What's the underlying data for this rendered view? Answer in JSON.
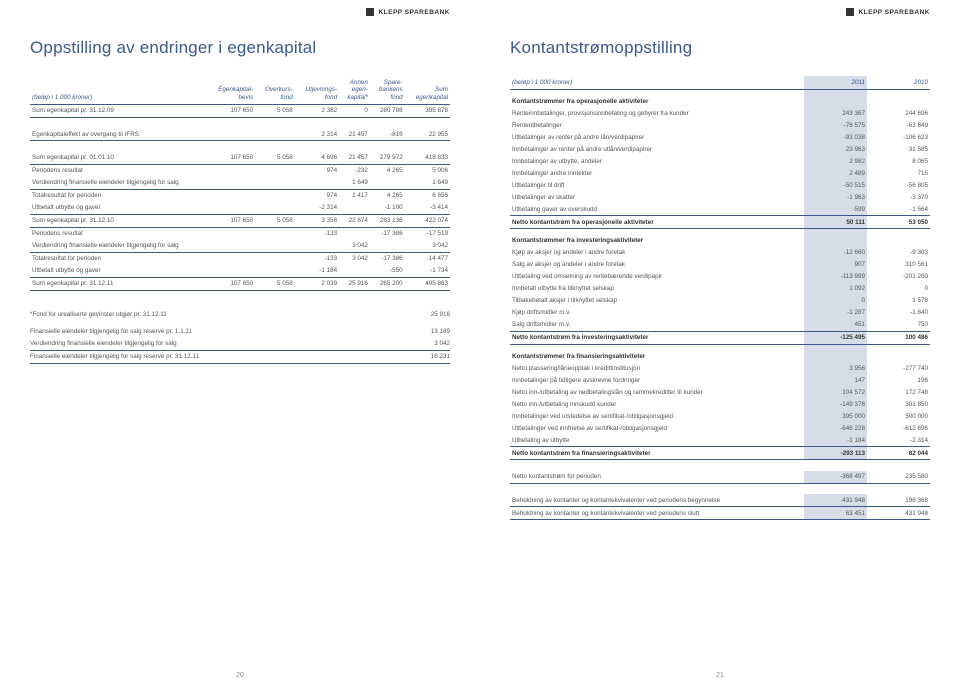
{
  "brand": "KLEPP SPAREBANK",
  "left": {
    "title": "Oppstilling av endringer i egenkapital",
    "unit": "(beløp i 1 000 kroner)",
    "headers": [
      "Egenkapital-\nbevis",
      "Overkurs-\nfond",
      "Utjevnings-\nfond",
      "Annen\negen-\nkapital*",
      "Spare-\nbankens\nfond",
      "Sum\negenkapital"
    ],
    "rows": [
      {
        "l": "Sum egenkapital pr. 31.12.09",
        "v": [
          "107 650",
          "5 058",
          "2 382",
          "0",
          "280 788",
          "395 878"
        ],
        "rule": true
      },
      {
        "l": "",
        "v": [
          "",
          "",
          "",
          "",
          "",
          ""
        ],
        "space": true
      },
      {
        "l": "Egenkapitaleffekt av overgang til IFRS",
        "v": [
          "",
          "",
          "2 314",
          "21 457",
          "-816",
          "22 955"
        ],
        "rule": true
      },
      {
        "l": "",
        "v": [
          "",
          "",
          "",
          "",
          "",
          ""
        ],
        "space": true
      },
      {
        "l": "Sum egenkapital pr. 01.01.10",
        "v": [
          "107 650",
          "5 058",
          "4 696",
          "21 457",
          "279 972",
          "418 833"
        ],
        "rule": true
      },
      {
        "l": "Periodens resultat",
        "v": [
          "",
          "",
          "974",
          "-232",
          "4 265",
          "5 006"
        ]
      },
      {
        "l": "Verdiendring finansielle eiendeler tilgjengelig for salg",
        "v": [
          "",
          "",
          "",
          "1 649",
          "",
          "1 649"
        ],
        "rule": true
      },
      {
        "l": "Totalresultat for perioden",
        "v": [
          "",
          "",
          "974",
          "1 417",
          "4 265",
          "6 656"
        ]
      },
      {
        "l": "Utbetalt utbytte og gaver",
        "v": [
          "",
          "",
          "-2 314",
          "",
          "-1 100",
          "-3 414"
        ],
        "rule": true
      },
      {
        "l": "Sum egenkapital pr. 31.12.10",
        "v": [
          "107 650",
          "5 058",
          "3 356",
          "22 874",
          "283 136",
          "422 074"
        ],
        "rule": true
      },
      {
        "l": "Periodens resultat",
        "v": [
          "",
          "",
          "-133",
          "",
          "-17 386",
          "-17 519"
        ]
      },
      {
        "l": "Verdiendring finansielle eiendeler tilgjengelig for salg",
        "v": [
          "",
          "",
          "",
          "3 042",
          "",
          "3 042"
        ],
        "rule": true
      },
      {
        "l": "Totalresultat for perioden",
        "v": [
          "",
          "",
          "-133",
          "3 042",
          "-17 386",
          "-14 477"
        ]
      },
      {
        "l": "Utbetalt utbytte og gaver",
        "v": [
          "",
          "",
          "-1 184",
          "",
          "-550",
          "-1 734"
        ],
        "rule": true
      },
      {
        "l": "Sum egenkapital pr. 31.12.11",
        "v": [
          "107 650",
          "5 058",
          "2 039",
          "25 916",
          "265 200",
          "405 863"
        ],
        "rule": true
      }
    ],
    "notes": [
      {
        "l": "*Fond for urealiserte gevinster utgjør pr. 31.12.11",
        "v": "25 916"
      },
      {
        "l": "",
        "v": ""
      },
      {
        "l": "Finansielle eiendeler tilgjengelig for salg reserve pr. 1.1.11",
        "v": "13 189"
      },
      {
        "l": "Verdiendring finansielle eiendeler tilgjengelig for salg",
        "v": "3 042",
        "rule": true
      },
      {
        "l": "Finansielle eiendeler tilgjengelig for salg reserve pr. 31.12.11",
        "v": "16 231",
        "rule": true
      }
    ],
    "pagenum": "20"
  },
  "right": {
    "title": "Kontantstrømoppstilling",
    "unit": "(beløp i 1 000 kroner)",
    "headers": [
      "2011",
      "2010"
    ],
    "sections": [
      {
        "head": "Kontantstrømmer fra operasjonelle aktiviteter",
        "rows": [
          {
            "l": "Renteinnbetalinger, provisjonsinnbetaling og gebyrer fra kunder",
            "v": [
              "243 367",
              "244 696"
            ]
          },
          {
            "l": "Renteutbetalinger",
            "v": [
              "-76 575",
              "-63 649"
            ]
          },
          {
            "l": "Utbetalinger av renter på andre lån/verdipapirer",
            "v": [
              "-93 038",
              "-106 623"
            ]
          },
          {
            "l": "Innbetalinger av renter på andre utlån/verdipapirer",
            "v": [
              "23 963",
              "31 585"
            ]
          },
          {
            "l": "Innbetalinger av utbytte, andeler",
            "v": [
              "2 982",
              "8 065"
            ]
          },
          {
            "l": "Innbetalinger andre inntekter",
            "v": [
              "2 489",
              "715"
            ]
          },
          {
            "l": "Utbetalinger til drift",
            "v": [
              "-50 515",
              "-56 805"
            ]
          },
          {
            "l": "Utbetalinger av skatter",
            "v": [
              "-1 963",
              "-3 370"
            ]
          },
          {
            "l": "Utbetaling gaver av overskudd",
            "v": [
              "-599",
              "-1 564"
            ],
            "rule": true
          },
          {
            "l": "Netto kontantstrøm fra operasjonelle aktiviteter",
            "v": [
              "50 111",
              "53 050"
            ],
            "bold": true,
            "hl": true,
            "rule": true
          }
        ]
      },
      {
        "head": "Kontantstrømmer fra investeringsaktiviteter",
        "rows": [
          {
            "l": "Kjøp av aksjer og andeler i andre foretak",
            "v": [
              "-12 660",
              "-9 303"
            ]
          },
          {
            "l": "Salg av aksjer og andeler i andre foretak",
            "v": [
              "907",
              "310 561"
            ]
          },
          {
            "l": "Utbetaling ved omsetning av rentebærende verdipapir",
            "v": [
              "-113 999",
              "-201 260"
            ]
          },
          {
            "l": "Innbetalt utbytte fra tilknyttet selskap",
            "v": [
              "1 092",
              "0"
            ]
          },
          {
            "l": "Tilbakebetalt aksjer i tilknyttet selskap",
            "v": [
              "0",
              "1 578"
            ]
          },
          {
            "l": "Kjøp driftsmidler m.v.",
            "v": [
              "-1 287",
              "-1 840"
            ]
          },
          {
            "l": "Salg driftsmidler m.v.",
            "v": [
              "451",
              "750"
            ],
            "rule": true
          },
          {
            "l": "Netto kontantstrøm fra investeringsaktiviteter",
            "v": [
              "-125 495",
              "100 486"
            ],
            "bold": true,
            "hl": true,
            "rule": true
          }
        ]
      },
      {
        "head": "Kontantstrømmer fra finansieringsaktiviteter",
        "rows": [
          {
            "l": "Netto plassering/låneopptak i kredittinstitusjon",
            "v": [
              "3 956",
              "-277 740"
            ]
          },
          {
            "l": "Innbetalinger på tidligere avskrevne fordringer",
            "v": [
              "147",
              "196"
            ]
          },
          {
            "l": "Netto inn-/utbetaling av nedbetalingslån og rammekreditter til kunder",
            "v": [
              "104 572",
              "172 748"
            ]
          },
          {
            "l": "Netto inn-/utbetaling innskudd kunder",
            "v": [
              "-149 376",
              "301 850"
            ]
          },
          {
            "l": "Innbetalinger ved utstedelse av sertifikat-/obligasjonsgjeld",
            "v": [
              "395 000",
              "500 000"
            ]
          },
          {
            "l": "Utbetalinger ved innfrielse av sertifikat-/obligasjonsgjeld",
            "v": [
              "-646 228",
              "-612 696"
            ]
          },
          {
            "l": "Utbetaling av utbytte",
            "v": [
              "-1 184",
              "-2 314"
            ],
            "rule": true
          },
          {
            "l": "Netto kontantstrøm fra finansieringsaktiviteter",
            "v": [
              "-293 113",
              "82 044"
            ],
            "bold": true,
            "hl": true,
            "rule": true
          }
        ]
      },
      {
        "head": "",
        "rows": [
          {
            "l": "Netto kontantstrøm for perioden",
            "v": [
              "-368 497",
              "235 580"
            ],
            "rule": true
          }
        ]
      },
      {
        "head": "",
        "rows": [
          {
            "l": "Beholdning av kontanter og kontantekvivalenter ved periodens begynnelse",
            "v": [
              "431 948",
              "196 368"
            ],
            "rule": true
          },
          {
            "l": "Beholdning av kontanter og kontantekvivalenter ved periodens slutt",
            "v": [
              "63 451",
              "431 948"
            ],
            "rule": true
          }
        ]
      }
    ],
    "pagenum": "21"
  }
}
